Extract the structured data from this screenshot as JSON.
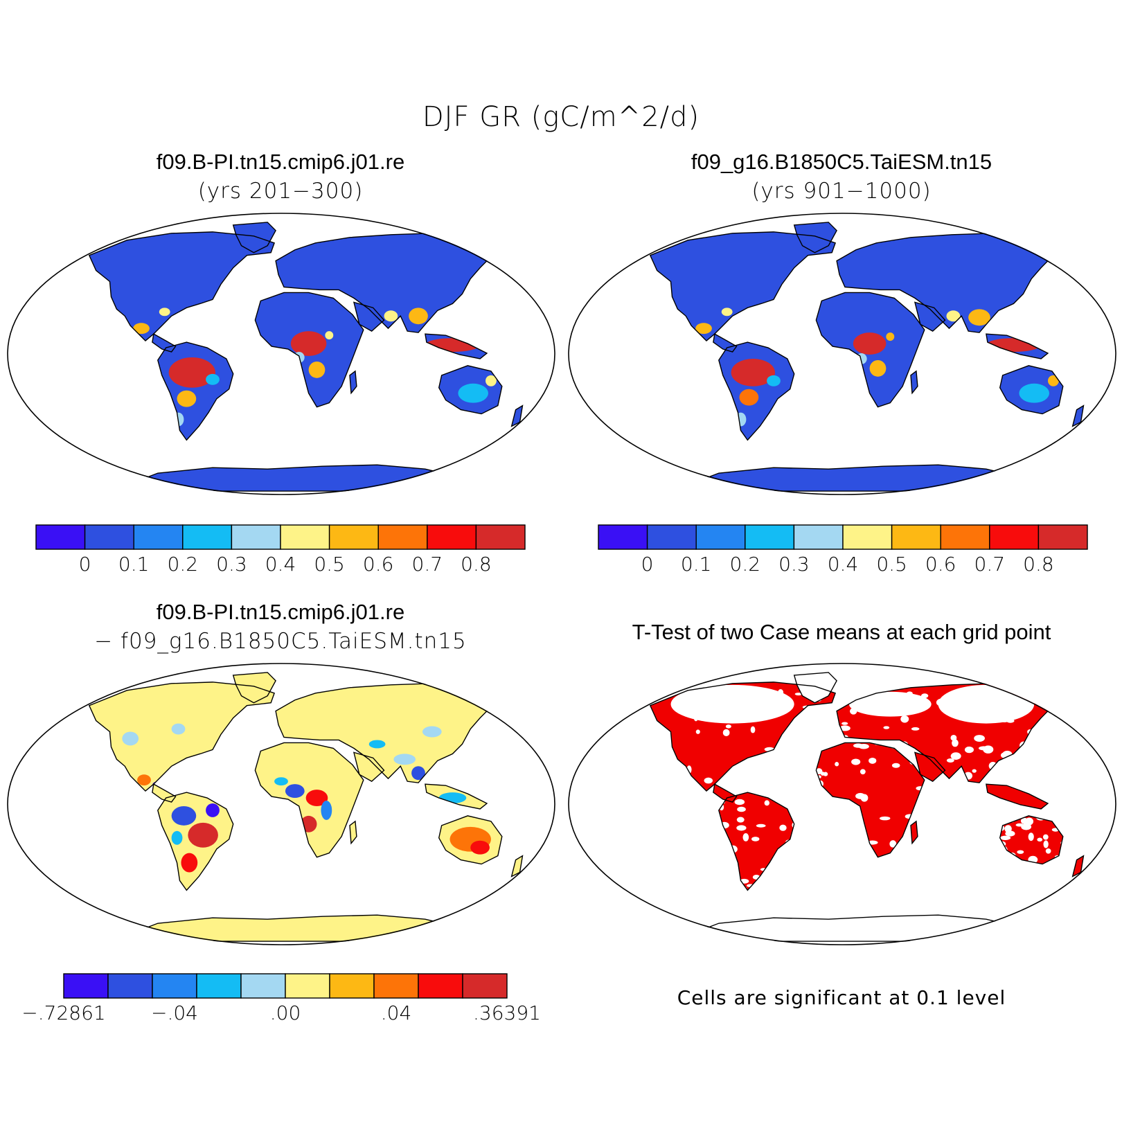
{
  "title": "DJF GR (gC/m^2/d)",
  "colors": {
    "scale": [
      "#3a10f5",
      "#2e50e0",
      "#2485f2",
      "#14bcf4",
      "#a4d8f2",
      "#fef388",
      "#fdb814",
      "#fd7408",
      "#f80c0c",
      "#d62a2a"
    ],
    "significant": "#f00000",
    "land_outline": "#000000"
  },
  "panels": [
    {
      "id": "case1",
      "title": "f09.B-PI.tn15.cmip6.j01.re",
      "subtitle": "(yrs 201−300)",
      "map": "robinson-world",
      "colorbar": {
        "labels": [
          "0",
          "0.1",
          "0.2",
          "0.3",
          "0.4",
          "0.5",
          "0.6",
          "0.7",
          "0.8"
        ],
        "levels": [
          0,
          0.1,
          0.2,
          0.3,
          0.4,
          0.5,
          0.6,
          0.7,
          0.8
        ],
        "bins": 10
      }
    },
    {
      "id": "case2",
      "title": "f09_g16.B1850C5.TaiESM.tn15",
      "subtitle": "(yrs 901−1000)",
      "map": "robinson-world",
      "colorbar": {
        "labels": [
          "0",
          "0.1",
          "0.2",
          "0.3",
          "0.4",
          "0.5",
          "0.6",
          "0.7",
          "0.8"
        ],
        "levels": [
          0,
          0.1,
          0.2,
          0.3,
          0.4,
          0.5,
          0.6,
          0.7,
          0.8
        ],
        "bins": 10
      }
    },
    {
      "id": "diff",
      "title": "f09.B-PI.tn15.cmip6.j01.re",
      "subtitle": "− f09_g16.B1850C5.TaiESM.tn15",
      "map": "robinson-world",
      "colorbar": {
        "labels": [
          "−.72861",
          "−.04",
          ".00",
          ".04",
          ".36391"
        ],
        "levels": [
          -0.72861,
          -0.04,
          0.0,
          0.04,
          0.36391
        ],
        "bins": 10
      }
    },
    {
      "id": "ttest",
      "title": "T-Test of two Case means at each grid point",
      "map": "robinson-world",
      "caption": "Cells are significant at 0.1 level"
    }
  ]
}
